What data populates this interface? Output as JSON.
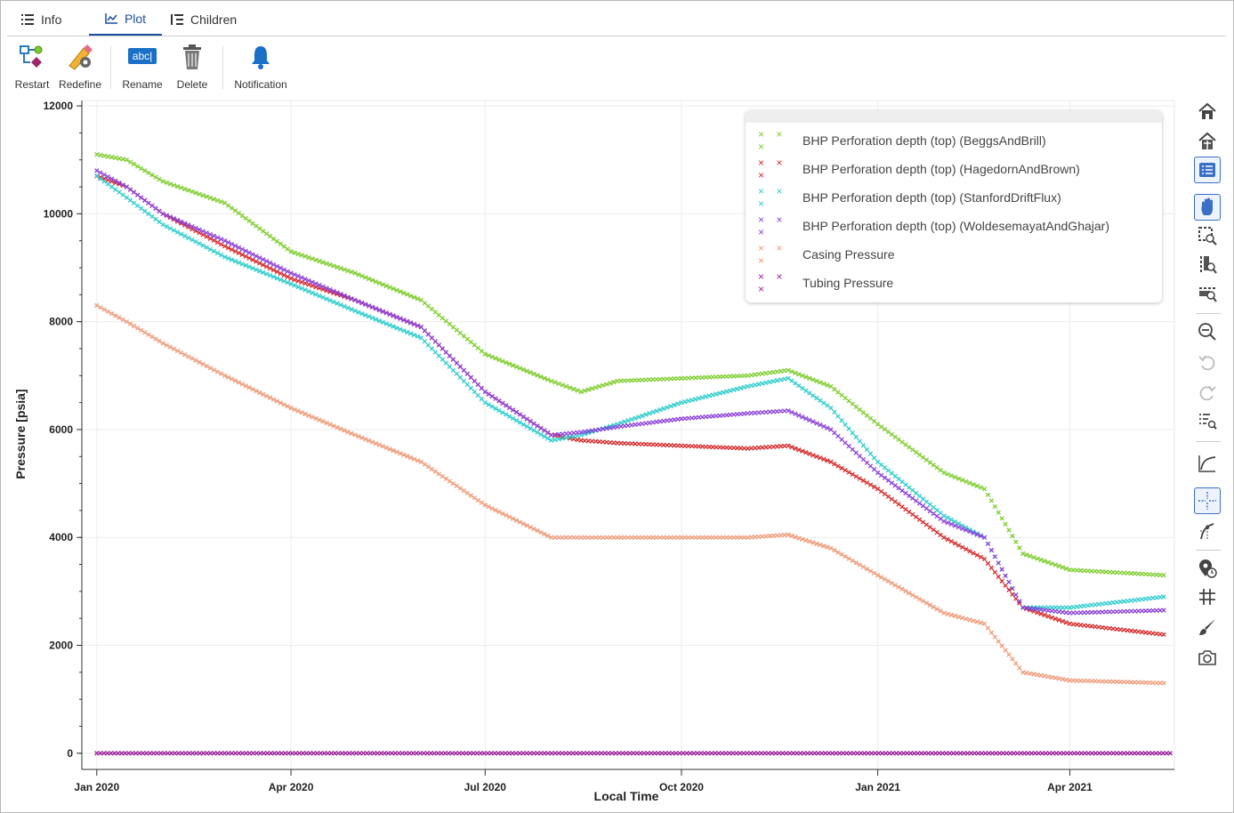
{
  "tabs": [
    {
      "label": "Info",
      "icon": "list-icon"
    },
    {
      "label": "Plot",
      "icon": "line-chart-icon",
      "active": true
    },
    {
      "label": "Children",
      "icon": "tree-list-icon"
    }
  ],
  "toolbar": {
    "restart_label": "Restart",
    "redefine_label": "Redefine",
    "rename_label": "Rename",
    "rename_icon_text": "abc|",
    "delete_label": "Delete",
    "notification_label": "Notification"
  },
  "side_tools": [
    "home-icon",
    "home-alt-icon",
    "legend-icon",
    "pan-icon",
    "box-zoom-icon",
    "y-zoom-icon",
    "x-zoom-icon",
    "zoom-out-icon",
    "undo-icon",
    "redo-icon",
    "list-zoom-icon",
    "curve-icon",
    "crosshair-icon",
    "hover-icon",
    "pin-icon",
    "grid-icon",
    "brush-icon",
    "camera-icon"
  ],
  "chart_data": {
    "type": "scatter",
    "xlabel": "Local Time",
    "ylabel": "Pressure [psia]",
    "ylim": [
      -300,
      12100
    ],
    "xlim": [
      "2019-12-25",
      "2021-05-20"
    ],
    "x_ticks": [
      {
        "label": "Jan 2020",
        "date": "2020-01-01"
      },
      {
        "label": "Apr 2020",
        "date": "2020-04-01"
      },
      {
        "label": "Jul 2020",
        "date": "2020-07-01"
      },
      {
        "label": "Oct 2020",
        "date": "2020-10-01"
      },
      {
        "label": "Jan 2021",
        "date": "2021-01-01"
      },
      {
        "label": "Apr 2021",
        "date": "2021-04-01"
      }
    ],
    "y_ticks": [
      0,
      2000,
      4000,
      6000,
      8000,
      10000,
      12000
    ],
    "grid": true,
    "legend_position": "top-right",
    "marker": "x",
    "series": [
      {
        "name": "BHP Perforation depth (top) (BeggsAndBrill)",
        "color": "#7ccc2a",
        "x": [
          "2020-01-01",
          "2020-01-15",
          "2020-02-01",
          "2020-03-01",
          "2020-04-01",
          "2020-05-01",
          "2020-06-01",
          "2020-07-01",
          "2020-08-01",
          "2020-08-15",
          "2020-09-01",
          "2020-10-01",
          "2020-11-01",
          "2020-11-20",
          "2020-12-10",
          "2021-01-01",
          "2021-02-01",
          "2021-02-20",
          "2021-03-10",
          "2021-04-01",
          "2021-05-15"
        ],
        "y": [
          11100,
          11000,
          10600,
          10200,
          9300,
          8900,
          8400,
          7400,
          6900,
          6700,
          6900,
          6950,
          7000,
          7100,
          6800,
          6100,
          5200,
          4900,
          3700,
          3400,
          3300
        ]
      },
      {
        "name": "BHP Perforation depth (top) (HagedornAndBrown)",
        "color": "#d62728",
        "x": [
          "2020-01-01",
          "2020-01-15",
          "2020-02-01",
          "2020-03-01",
          "2020-04-01",
          "2020-05-01",
          "2020-06-01",
          "2020-07-01",
          "2020-08-01",
          "2020-08-15",
          "2020-09-01",
          "2020-10-01",
          "2020-11-01",
          "2020-11-20",
          "2020-12-10",
          "2021-01-01",
          "2021-02-01",
          "2021-02-20",
          "2021-03-10",
          "2021-04-01",
          "2021-05-15"
        ],
        "y": [
          10700,
          10500,
          10000,
          9400,
          8800,
          8400,
          7900,
          6700,
          5900,
          5800,
          5750,
          5700,
          5650,
          5700,
          5400,
          4900,
          4000,
          3600,
          2700,
          2400,
          2200
        ]
      },
      {
        "name": "BHP Perforation depth (top) (StanfordDriftFlux)",
        "color": "#2bcccc",
        "x": [
          "2020-01-01",
          "2020-01-15",
          "2020-02-01",
          "2020-03-01",
          "2020-04-01",
          "2020-05-01",
          "2020-06-01",
          "2020-07-01",
          "2020-08-01",
          "2020-08-15",
          "2020-09-01",
          "2020-10-01",
          "2020-11-01",
          "2020-11-20",
          "2020-12-10",
          "2021-01-01",
          "2021-02-01",
          "2021-02-20",
          "2021-03-10",
          "2021-04-01",
          "2021-05-15"
        ],
        "y": [
          10700,
          10300,
          9800,
          9200,
          8700,
          8200,
          7700,
          6500,
          5800,
          5900,
          6100,
          6500,
          6800,
          6950,
          6400,
          5400,
          4400,
          4000,
          2700,
          2700,
          2900
        ]
      },
      {
        "name": "BHP Perforation depth (top) (WoldesemayatAndGhajar)",
        "color": "#8b3fd9",
        "x": [
          "2020-01-01",
          "2020-01-15",
          "2020-02-01",
          "2020-03-01",
          "2020-04-01",
          "2020-05-01",
          "2020-06-01",
          "2020-07-01",
          "2020-08-01",
          "2020-08-15",
          "2020-09-01",
          "2020-10-01",
          "2020-11-01",
          "2020-11-20",
          "2020-12-10",
          "2021-01-01",
          "2021-02-01",
          "2021-02-20",
          "2021-03-10",
          "2021-04-01",
          "2021-05-15"
        ],
        "y": [
          10800,
          10500,
          10000,
          9500,
          8900,
          8400,
          7900,
          6700,
          5900,
          5950,
          6050,
          6200,
          6300,
          6350,
          6000,
          5200,
          4300,
          4000,
          2700,
          2600,
          2650
        ]
      },
      {
        "name": "Casing Pressure",
        "color": "#ee9977",
        "x": [
          "2020-01-01",
          "2020-01-15",
          "2020-02-01",
          "2020-03-01",
          "2020-04-01",
          "2020-05-01",
          "2020-06-01",
          "2020-07-01",
          "2020-08-01",
          "2020-08-15",
          "2020-09-01",
          "2020-10-01",
          "2020-11-01",
          "2020-11-20",
          "2020-12-10",
          "2021-01-01",
          "2021-02-01",
          "2021-02-20",
          "2021-03-10",
          "2021-04-01",
          "2021-05-15"
        ],
        "y": [
          8300,
          8000,
          7600,
          7000,
          6400,
          5900,
          5400,
          4600,
          4000,
          4000,
          4000,
          4000,
          4000,
          4050,
          3800,
          3300,
          2600,
          2400,
          1500,
          1350,
          1300
        ]
      },
      {
        "name": "Tubing Pressure",
        "color": "#9b1d9b",
        "x": [
          "2020-01-01",
          "2021-05-18"
        ],
        "y": [
          0,
          0
        ]
      }
    ]
  }
}
